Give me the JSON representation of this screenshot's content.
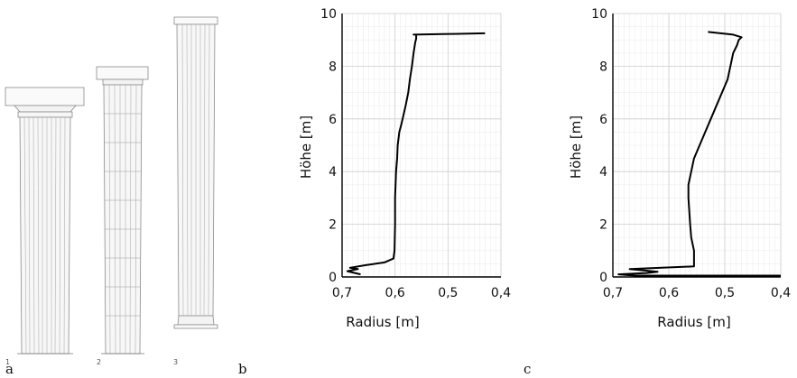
{
  "panels": {
    "a": {
      "letter": "a",
      "column_numbers": [
        "1",
        "2",
        "3"
      ]
    },
    "b": {
      "letter": "b"
    },
    "c": {
      "letter": "c"
    }
  },
  "chart_data": [
    {
      "type": "line",
      "panel": "b",
      "xlabel": "Radius [m]",
      "ylabel": "Höhe [m]",
      "xlim": [
        0.7,
        0.4
      ],
      "x_reversed": true,
      "ylim": [
        0,
        10
      ],
      "xticks": [
        0.7,
        0.6,
        0.5,
        0.4
      ],
      "xtick_labels": [
        "0,7",
        "0,6",
        "0,5",
        "0,4"
      ],
      "yticks": [
        0,
        2,
        4,
        6,
        8,
        10
      ],
      "ytick_labels": [
        "0",
        "2",
        "4",
        "6",
        "8",
        "10"
      ],
      "grid": true,
      "line_color": "#000000",
      "series": [
        {
          "x": [
            0.665,
            0.69,
            0.67,
            0.685,
            0.655,
            0.62,
            0.603,
            0.601,
            0.6,
            0.6,
            0.598,
            0.596,
            0.595,
            0.592,
            0.588,
            0.58,
            0.575,
            0.572,
            0.568,
            0.565,
            0.562,
            0.56,
            0.56,
            0.56,
            0.565,
            0.51,
            0.43
          ],
          "y": [
            0.1,
            0.22,
            0.3,
            0.35,
            0.45,
            0.55,
            0.7,
            1.0,
            2.0,
            3.0,
            4.0,
            4.5,
            5.0,
            5.5,
            5.8,
            6.5,
            7.0,
            7.5,
            8.0,
            8.5,
            8.9,
            9.05,
            9.15,
            9.2,
            9.2,
            9.22,
            9.25
          ]
        }
      ]
    },
    {
      "type": "line",
      "panel": "c",
      "xlabel": "Radius [m]",
      "ylabel": "Höhe [m]",
      "xlim": [
        0.7,
        0.4
      ],
      "x_reversed": true,
      "ylim": [
        0,
        10
      ],
      "xticks": [
        0.7,
        0.6,
        0.5,
        0.4
      ],
      "xtick_labels": [
        "0,7",
        "0,6",
        "0,5",
        "0,4"
      ],
      "yticks": [
        0,
        2,
        4,
        6,
        8,
        10
      ],
      "ytick_labels": [
        "0",
        "2",
        "4",
        "6",
        "8",
        "10"
      ],
      "grid": true,
      "line_color": "#000000",
      "series": [
        {
          "x": [
            0.4,
            0.66,
            0.69,
            0.64,
            0.62,
            0.67,
            0.555,
            0.555,
            0.555,
            0.56,
            0.562,
            0.565,
            0.565,
            0.56,
            0.555,
            0.545,
            0.535,
            0.525,
            0.515,
            0.505,
            0.495,
            0.49,
            0.485,
            0.478,
            0.475,
            0.47,
            0.485,
            0.53
          ],
          "y": [
            0.05,
            0.05,
            0.1,
            0.15,
            0.2,
            0.3,
            0.4,
            0.6,
            1.0,
            1.5,
            2.0,
            3.0,
            3.5,
            4.0,
            4.5,
            5.0,
            5.5,
            6.0,
            6.5,
            7.0,
            7.5,
            8.0,
            8.5,
            8.8,
            9.0,
            9.1,
            9.2,
            9.3
          ]
        }
      ]
    }
  ]
}
